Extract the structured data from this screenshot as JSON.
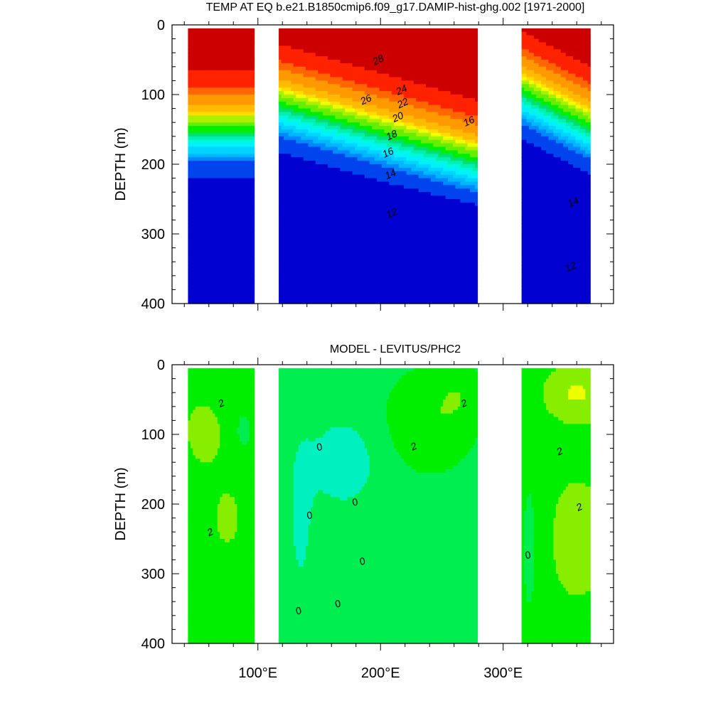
{
  "chart_data": [
    {
      "type": "heatmap",
      "title": "TEMP AT EQ b.e21.B1850cmip6.f09_g17.DAMIP-hist-ghg.002 [1971-2000]",
      "xlabel": "",
      "ylabel": "DEPTH (m)",
      "xlim": [
        30,
        390
      ],
      "ylim": [
        400,
        0
      ],
      "y_ticks": [
        {
          "value": 0,
          "label": "0"
        },
        {
          "value": 100,
          "label": "100"
        },
        {
          "value": 200,
          "label": "200"
        },
        {
          "value": 300,
          "label": "300"
        },
        {
          "value": 400,
          "label": "400"
        }
      ],
      "x_ticks": [
        {
          "value": 100,
          "label": "100°E"
        },
        {
          "value": 200,
          "label": "200°E"
        },
        {
          "value": 300,
          "label": "300°E"
        }
      ],
      "land_gaps_lon": [
        [
          97,
          118
        ],
        [
          279,
          315
        ]
      ],
      "data_lon_range": [
        43,
        370
      ],
      "color_levels": [
        {
          "min": 4,
          "color": "#0000d0"
        },
        {
          "min": 8,
          "color": "#0044ee"
        },
        {
          "min": 10,
          "color": "#0088ff"
        },
        {
          "min": 11,
          "color": "#00b8ff"
        },
        {
          "min": 12,
          "color": "#00d4ff"
        },
        {
          "min": 13,
          "color": "#00f0ff"
        },
        {
          "min": 14,
          "color": "#00f7e0"
        },
        {
          "min": 15,
          "color": "#00f0b0"
        },
        {
          "min": 16,
          "color": "#00e070"
        },
        {
          "min": 17,
          "color": "#00ee00"
        },
        {
          "min": 18,
          "color": "#66ee00"
        },
        {
          "min": 19,
          "color": "#aaf000"
        },
        {
          "min": 20,
          "color": "#eeff00"
        },
        {
          "min": 21,
          "color": "#ffdd00"
        },
        {
          "min": 22,
          "color": "#ffbb00"
        },
        {
          "min": 24,
          "color": "#ff9900"
        },
        {
          "min": 26,
          "color": "#ff6600"
        },
        {
          "min": 27,
          "color": "#ff2200"
        },
        {
          "min": 28,
          "color": "#cc0000"
        }
      ],
      "contour_labels": [
        {
          "text": "28",
          "lon": 198,
          "depth": 50
        },
        {
          "text": "26",
          "lon": 188,
          "depth": 107
        },
        {
          "text": "24",
          "lon": 217,
          "depth": 93
        },
        {
          "text": "22",
          "lon": 218,
          "depth": 112
        },
        {
          "text": "20",
          "lon": 214,
          "depth": 132
        },
        {
          "text": "18",
          "lon": 209,
          "depth": 158
        },
        {
          "text": "16",
          "lon": 206,
          "depth": 183
        },
        {
          "text": "16",
          "lon": 272,
          "depth": 138
        },
        {
          "text": "14",
          "lon": 208,
          "depth": 214
        },
        {
          "text": "12",
          "lon": 209,
          "depth": 270
        },
        {
          "text": "14",
          "lon": 357,
          "depth": 254
        },
        {
          "text": "12",
          "lon": 355,
          "depth": 347
        }
      ]
    },
    {
      "type": "heatmap",
      "title": "MODEL - LEVITUS/PHC2",
      "xlabel": "",
      "ylabel": "DEPTH (m)",
      "xlim": [
        30,
        390
      ],
      "ylim": [
        400,
        0
      ],
      "y_ticks": [
        {
          "value": 0,
          "label": "0"
        },
        {
          "value": 100,
          "label": "100"
        },
        {
          "value": 200,
          "label": "200"
        },
        {
          "value": 300,
          "label": "300"
        },
        {
          "value": 400,
          "label": "400"
        }
      ],
      "x_ticks": [
        {
          "value": 100,
          "label": "100°E"
        },
        {
          "value": 200,
          "label": "200°E"
        },
        {
          "value": 300,
          "label": "300°E"
        }
      ],
      "land_gaps_lon": [
        [
          97,
          118
        ],
        [
          279,
          315
        ]
      ],
      "data_lon_range": [
        43,
        370
      ],
      "color_levels": [
        {
          "min": -2,
          "color": "#00f0c0"
        },
        {
          "min": 0,
          "color": "#00ee50"
        },
        {
          "min": 1,
          "color": "#00ee00"
        },
        {
          "min": 2,
          "color": "#88ee00"
        },
        {
          "min": 3,
          "color": "#eeff00"
        },
        {
          "min": 4,
          "color": "#ffcc00"
        }
      ],
      "contour_labels": [
        {
          "text": "2",
          "lon": 70,
          "depth": 55
        },
        {
          "text": "2",
          "lon": 61,
          "depth": 240
        },
        {
          "text": "0",
          "lon": 150,
          "depth": 118
        },
        {
          "text": "0",
          "lon": 179,
          "depth": 197
        },
        {
          "text": "0",
          "lon": 142,
          "depth": 216
        },
        {
          "text": "0",
          "lon": 185,
          "depth": 282
        },
        {
          "text": "0",
          "lon": 165,
          "depth": 343
        },
        {
          "text": "0",
          "lon": 133,
          "depth": 353
        },
        {
          "text": "2",
          "lon": 227,
          "depth": 117
        },
        {
          "text": "2",
          "lon": 268,
          "depth": 55
        },
        {
          "text": "2",
          "lon": 346,
          "depth": 124
        },
        {
          "text": "2",
          "lon": 362,
          "depth": 204
        },
        {
          "text": "0",
          "lon": 320,
          "depth": 273
        }
      ]
    }
  ]
}
